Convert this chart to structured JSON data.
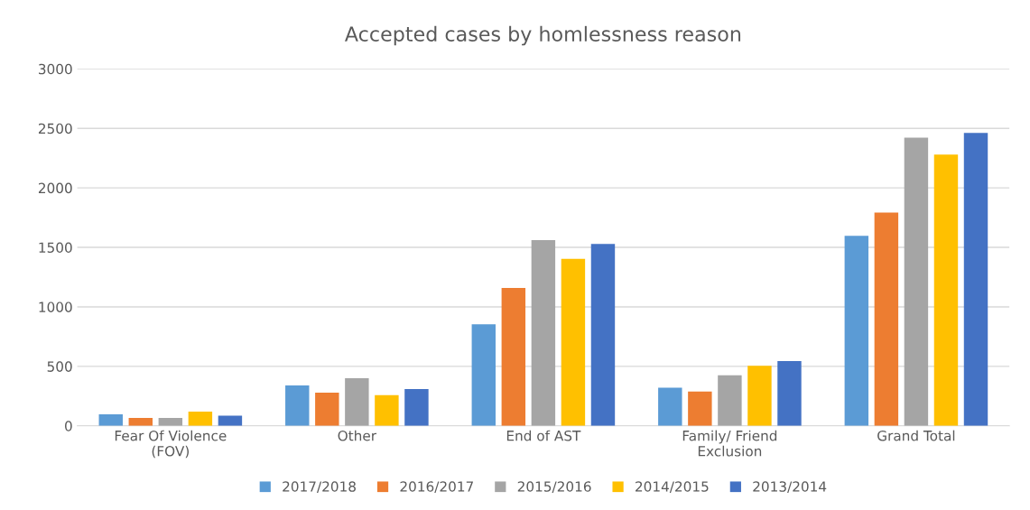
{
  "chart_data": {
    "type": "bar",
    "title": "Accepted cases by homlessness reason",
    "categories": [
      "Fear Of Violence\n(FOV)",
      "Other",
      "End of AST",
      "Family/ Friend\nExclusion",
      "Grand Total"
    ],
    "series": [
      {
        "name": "2017/2018",
        "color": "#5b9bd5",
        "values": [
          96,
          340,
          854,
          320,
          1597
        ]
      },
      {
        "name": "2016/2017",
        "color": "#ed7d31",
        "values": [
          66,
          279,
          1159,
          289,
          1792
        ]
      },
      {
        "name": "2015/2016",
        "color": "#a5a5a5",
        "values": [
          66,
          401,
          1560,
          425,
          2421
        ]
      },
      {
        "name": "2014/2015",
        "color": "#ffc000",
        "values": [
          119,
          259,
          1404,
          504,
          2279
        ]
      },
      {
        "name": "2013/2014",
        "color": "#4472c4",
        "values": [
          86,
          310,
          1529,
          545,
          2462
        ]
      }
    ],
    "ylim": [
      0,
      3000
    ],
    "yticks": [
      0,
      500,
      1000,
      1500,
      2000,
      2500,
      3000
    ],
    "grid": "y",
    "legend": "bottom"
  }
}
